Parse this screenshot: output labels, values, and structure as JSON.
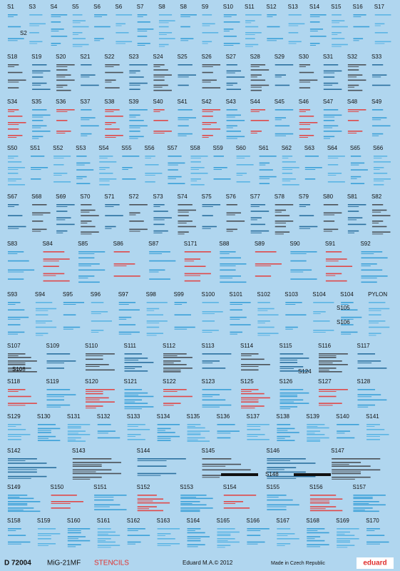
{
  "sheet": {
    "code": "D 72004",
    "model": "MiG-21MF",
    "subject": "STENCILS",
    "rows": [
      [
        "S1",
        "S3",
        "S4",
        "S5",
        "S6",
        "S6",
        "S7",
        "S8",
        "S8",
        "S9",
        "S10",
        "S11",
        "S12",
        "S13",
        "S14",
        "S15",
        "S16",
        "S17"
      ],
      [
        "S18",
        "S19",
        "S20",
        "S21",
        "S22",
        "S23",
        "S24",
        "S25",
        "S26",
        "S27",
        "S28",
        "S29",
        "S30",
        "S31",
        "S32",
        "S33"
      ],
      [
        "S34",
        "S35",
        "S36",
        "S37",
        "S38",
        "S39",
        "S40",
        "S41",
        "S42",
        "S43",
        "S44",
        "S45",
        "S46",
        "S47",
        "S48",
        "S49"
      ],
      [
        "S50",
        "S51",
        "S52",
        "S53",
        "S54",
        "S55",
        "S56",
        "S57",
        "S58",
        "S59",
        "S60",
        "S61",
        "S62",
        "S63",
        "S64",
        "S65",
        "S66"
      ],
      [
        "S67",
        "S68",
        "S69",
        "S70",
        "S71",
        "S72",
        "S73",
        "S74",
        "S75",
        "S76",
        "S77",
        "S78",
        "S79",
        "S80",
        "S81",
        "S82"
      ],
      [
        "S83",
        "S84",
        "S85",
        "S86",
        "S87",
        "S171",
        "S88",
        "S89",
        "S90",
        "S91",
        "S92"
      ],
      [
        "S93",
        "S94",
        "S95",
        "S96",
        "S97",
        "S98",
        "S99",
        "S100",
        "S101",
        "S102",
        "S103",
        "S104",
        "S104",
        "PYLON"
      ],
      [
        "S107",
        "S109",
        "S110",
        "S111",
        "S112",
        "S113",
        "S114",
        "S115",
        "S116",
        "S117"
      ],
      [
        "S118",
        "S119",
        "S120",
        "S121",
        "S122",
        "S123",
        "S125",
        "S126",
        "S127",
        "S128"
      ],
      [
        "S129",
        "S130",
        "S131",
        "S132",
        "S133",
        "S134",
        "S135",
        "S136",
        "S137",
        "S138",
        "S139",
        "S140",
        "S141"
      ],
      [
        "S142",
        "S143",
        "S144",
        "S145",
        "S146",
        "S147"
      ],
      [
        "S149",
        "S150",
        "S151",
        "S152",
        "S153",
        "S154",
        "S155",
        "S156",
        "S157"
      ],
      [
        "S158",
        "S159",
        "S160",
        "S161",
        "S162",
        "S163",
        "S164",
        "S165",
        "S166",
        "S167",
        "S168",
        "S169",
        "S170"
      ]
    ],
    "extra_labels": [
      "S2",
      "S105",
      "S106",
      "S108",
      "S124",
      "S148"
    ]
  },
  "footer": {
    "copyright": "Eduard M.A.© 2012",
    "origin": "Made in Czech Republic",
    "brand": "eduard"
  }
}
